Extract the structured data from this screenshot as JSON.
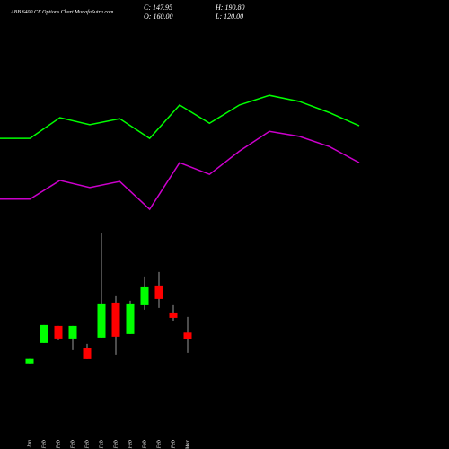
{
  "chart_data": [
    {
      "type": "candlestick",
      "title": "ABB 6400 CE Options Chart MunafaSutra.com",
      "ohlc_labels": [
        "C: 147.95",
        "H: 190.80",
        "O: 160.00",
        "L: 120.00"
      ],
      "categories": [
        "30 Jan",
        "16 Feb",
        "17 Feb",
        "18 Feb",
        "19 Feb",
        "20 Feb",
        "23 Feb",
        "24 Feb",
        "25 Feb",
        "26 Feb",
        "27 Feb",
        "02 Mar"
      ],
      "open": [
        99,
        139.5,
        173.1,
        148.3,
        128.8,
        150.1,
        219.1,
        157.2,
        213.8,
        252.8,
        199.6,
        160
      ],
      "high": [
        108,
        174.9,
        173.1,
        173.1,
        137.7,
        355.4,
        231.5,
        222.7,
        270.5,
        279.3,
        213.8,
        190.8
      ],
      "low": [
        99,
        139.5,
        144.8,
        125.3,
        107.6,
        150.1,
        116.5,
        157.2,
        205.0,
        208.5,
        182.0,
        120
      ],
      "close": [
        108,
        174.9,
        148.3,
        173.1,
        107.6,
        217.4,
        151.9,
        217.4,
        249.2,
        226.2,
        189.0,
        147.95
      ],
      "up_color": "#00ff00",
      "down_color": "#ff0000",
      "ylim": [
        72,
        373
      ]
    },
    {
      "type": "line",
      "categories": [
        null,
        null,
        null,
        null,
        null,
        null,
        null,
        null,
        null,
        null,
        null,
        null,
        null
      ],
      "series": [
        {
          "color": "#00ff00",
          "values": [
            543,
            543,
            584,
            570,
            582,
            543,
            609,
            573,
            609,
            628,
            616,
            594,
            568
          ]
        },
        {
          "color": "#cc00cc",
          "values": [
            423,
            423,
            460,
            446,
            458,
            403,
            495,
            472,
            518,
            557,
            547,
            527,
            495
          ]
        }
      ],
      "ylim": [
        373,
        639
      ]
    }
  ]
}
